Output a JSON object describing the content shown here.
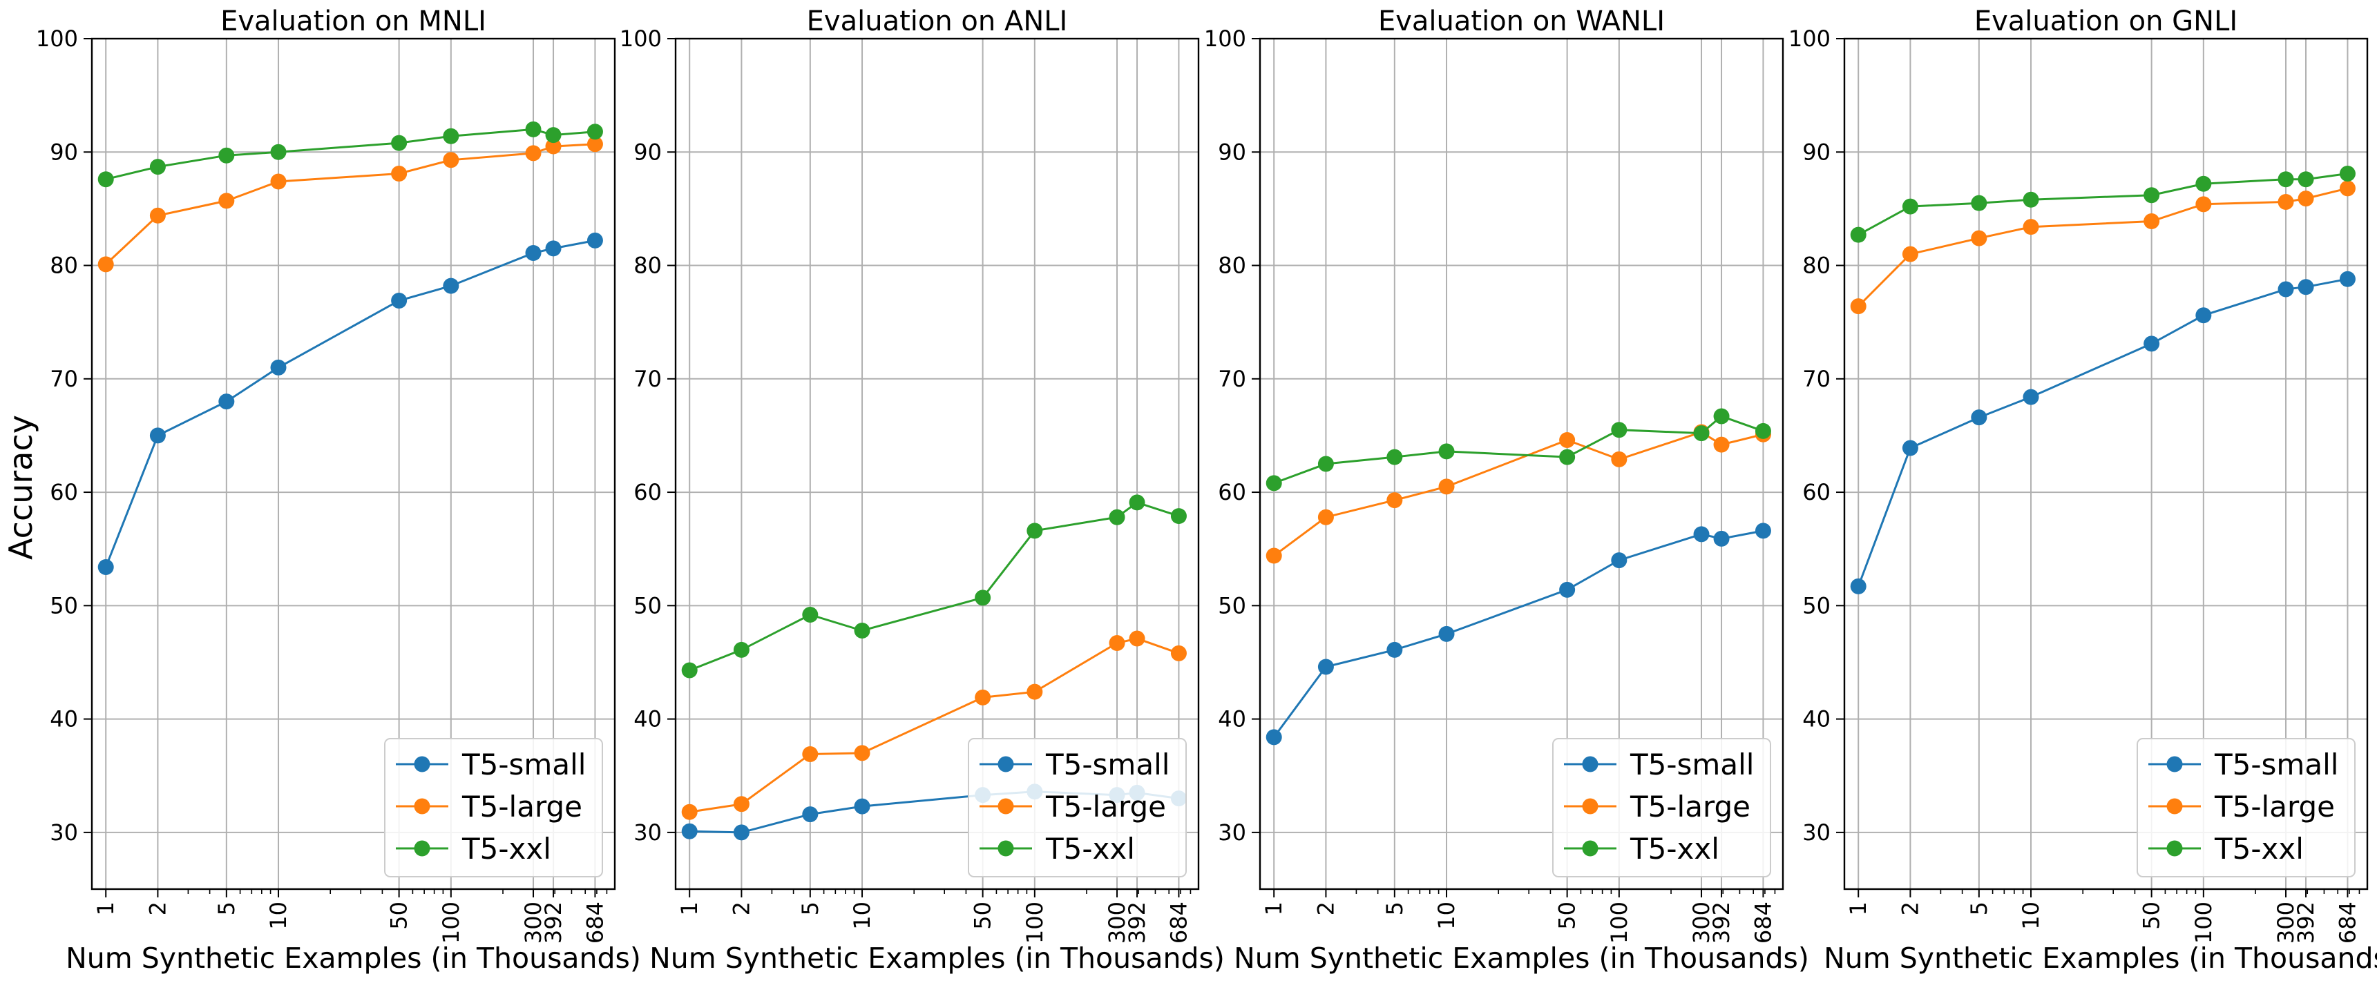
{
  "figure": {
    "shared_ylabel": "Accuracy",
    "series_colors": [
      "#1f77b4",
      "#ff7f0e",
      "#2ca02c"
    ]
  },
  "chart_data": [
    {
      "type": "line",
      "title": "Evaluation on MNLI",
      "xlabel": "Num Synthetic Examples (in Thousands)",
      "ylabel": "Accuracy",
      "x_scale": "log",
      "x": [
        1,
        2,
        5,
        10,
        50,
        100,
        300,
        392,
        684
      ],
      "x_tick_labels": [
        "1",
        "2",
        "5",
        "10",
        "50",
        "100",
        "300",
        "392",
        "684"
      ],
      "yticks": [
        30,
        40,
        50,
        60,
        70,
        80,
        90,
        100
      ],
      "ylim": [
        25,
        100
      ],
      "grid": true,
      "legend_position": "lower right",
      "series": [
        {
          "name": "T5-small",
          "color": "#1f77b4",
          "values": [
            53.4,
            65.0,
            68.0,
            71.0,
            76.9,
            78.2,
            81.1,
            81.5,
            82.2
          ]
        },
        {
          "name": "T5-large",
          "color": "#ff7f0e",
          "values": [
            80.1,
            84.4,
            85.7,
            87.4,
            88.1,
            89.3,
            89.9,
            90.5,
            90.7
          ]
        },
        {
          "name": "T5-xxl",
          "color": "#2ca02c",
          "values": [
            87.6,
            88.7,
            89.7,
            90.0,
            90.8,
            91.4,
            92.0,
            91.5,
            91.8
          ]
        }
      ]
    },
    {
      "type": "line",
      "title": "Evaluation on ANLI",
      "xlabel": "Num Synthetic Examples (in Thousands)",
      "x_scale": "log",
      "x": [
        1,
        2,
        5,
        10,
        50,
        100,
        300,
        392,
        684
      ],
      "x_tick_labels": [
        "1",
        "2",
        "5",
        "10",
        "50",
        "100",
        "300",
        "392",
        "684"
      ],
      "yticks": [
        30,
        40,
        50,
        60,
        70,
        80,
        90,
        100
      ],
      "ylim": [
        25,
        100
      ],
      "grid": true,
      "legend_position": "lower right",
      "series": [
        {
          "name": "T5-small",
          "color": "#1f77b4",
          "values": [
            30.1,
            30.0,
            31.6,
            32.3,
            33.3,
            33.6,
            33.3,
            33.5,
            33.0
          ]
        },
        {
          "name": "T5-large",
          "color": "#ff7f0e",
          "values": [
            31.8,
            32.5,
            36.9,
            37.0,
            41.9,
            42.4,
            46.7,
            47.1,
            45.8
          ]
        },
        {
          "name": "T5-xxl",
          "color": "#2ca02c",
          "values": [
            44.3,
            46.1,
            49.2,
            47.8,
            50.7,
            56.6,
            57.8,
            59.1,
            57.9
          ]
        }
      ]
    },
    {
      "type": "line",
      "title": "Evaluation on WANLI",
      "xlabel": "Num Synthetic Examples (in Thousands)",
      "x_scale": "log",
      "x": [
        1,
        2,
        5,
        10,
        50,
        100,
        300,
        392,
        684
      ],
      "x_tick_labels": [
        "1",
        "2",
        "5",
        "10",
        "50",
        "100",
        "300",
        "392",
        "684"
      ],
      "yticks": [
        30,
        40,
        50,
        60,
        70,
        80,
        90,
        100
      ],
      "ylim": [
        25,
        100
      ],
      "grid": true,
      "legend_position": "lower right",
      "series": [
        {
          "name": "T5-small",
          "color": "#1f77b4",
          "values": [
            38.4,
            44.6,
            46.1,
            47.5,
            51.4,
            54.0,
            56.3,
            55.9,
            56.6
          ]
        },
        {
          "name": "T5-large",
          "color": "#ff7f0e",
          "values": [
            54.4,
            57.8,
            59.3,
            60.5,
            64.6,
            62.9,
            65.3,
            64.2,
            65.1
          ]
        },
        {
          "name": "T5-xxl",
          "color": "#2ca02c",
          "values": [
            60.8,
            62.5,
            63.1,
            63.6,
            63.1,
            65.5,
            65.2,
            66.7,
            65.4
          ]
        }
      ]
    },
    {
      "type": "line",
      "title": "Evaluation on GNLI",
      "xlabel": "Num Synthetic Examples (in Thousands",
      "x_scale": "log",
      "x": [
        1,
        2,
        5,
        10,
        50,
        100,
        300,
        392,
        684
      ],
      "x_tick_labels": [
        "1",
        "2",
        "5",
        "10",
        "50",
        "100",
        "300",
        "392",
        "684"
      ],
      "yticks": [
        30,
        40,
        50,
        60,
        70,
        80,
        90,
        100
      ],
      "ylim": [
        25,
        100
      ],
      "grid": true,
      "legend_position": "lower right",
      "series": [
        {
          "name": "T5-small",
          "color": "#1f77b4",
          "values": [
            51.7,
            63.9,
            66.6,
            68.4,
            73.1,
            75.6,
            77.9,
            78.1,
            78.8
          ]
        },
        {
          "name": "T5-large",
          "color": "#ff7f0e",
          "values": [
            76.4,
            81.0,
            82.4,
            83.4,
            83.9,
            85.4,
            85.6,
            85.9,
            86.8
          ]
        },
        {
          "name": "T5-xxl",
          "color": "#2ca02c",
          "values": [
            82.7,
            85.2,
            85.5,
            85.8,
            86.2,
            87.2,
            87.6,
            87.6,
            88.1
          ]
        }
      ]
    }
  ]
}
